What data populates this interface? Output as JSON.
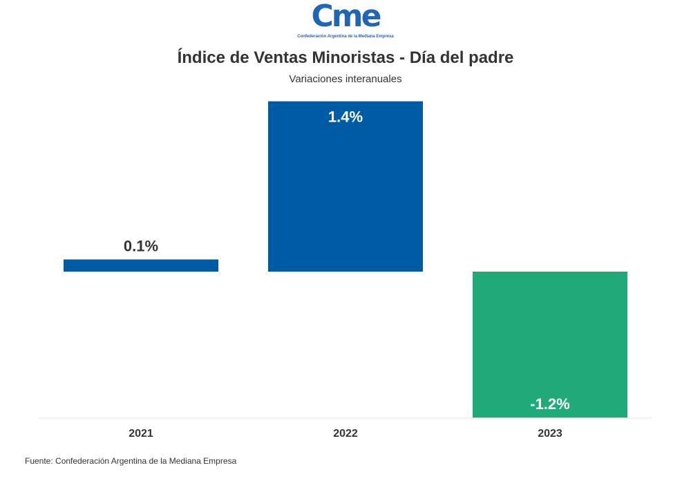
{
  "logo": {
    "mark": "Cme",
    "tagline": "Confederación Argentina de la Mediana Empresa"
  },
  "chart_data": {
    "type": "bar",
    "title": "Índice de Ventas Minoristas - Día del padre",
    "subtitle": "Variaciones interanuales",
    "categories": [
      "2021",
      "2022",
      "2023"
    ],
    "values": [
      0.1,
      1.4,
      -1.2
    ],
    "data_labels": [
      "0.1%",
      "1.4%",
      "-1.2%"
    ],
    "colors": {
      "positive": "#005ba5",
      "negative": "#1faa78",
      "label_dark": "#333333",
      "label_light": "#ffffff",
      "baseline": "#e0e0e0"
    },
    "ylim": [
      -1.2,
      1.4
    ],
    "xlabel": "",
    "ylabel": ""
  },
  "source": "Fuente: Confederación Argentina de la Mediana Empresa"
}
